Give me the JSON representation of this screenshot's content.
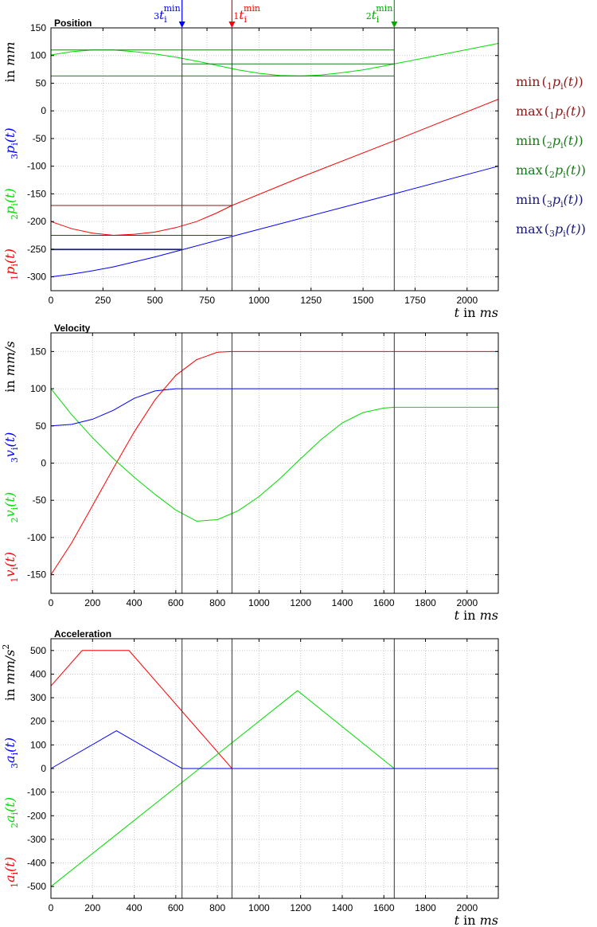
{
  "colors": {
    "p1": "#ff0000",
    "p2": "#00dd00",
    "p3": "#0000ff",
    "min1": "#8b1a1a",
    "max1": "#8b1a1a",
    "min2": "#1a7a1a",
    "max2": "#1a7a1a",
    "min3": "#1a1a7a",
    "max3": "#1a1a7a",
    "grid": "#c8c8c8",
    "axis": "#000000"
  },
  "markers": [
    {
      "label": "3t_i^min",
      "sub": "3",
      "sup": "min",
      "t": 630,
      "color": "#0000ff"
    },
    {
      "label": "1t_i^min",
      "sub": "1",
      "sup": "min",
      "t": 870,
      "color": "#ff0000"
    },
    {
      "label": "2t_i^min",
      "sub": "2",
      "sup": "min",
      "t": 1650,
      "color": "#00aa00"
    }
  ],
  "legend": [
    {
      "fn": "min",
      "sub": "1",
      "color": "#8b1a1a"
    },
    {
      "fn": "max",
      "sub": "1",
      "color": "#8b1a1a"
    },
    {
      "fn": "min",
      "sub": "2",
      "color": "#1a7a1a"
    },
    {
      "fn": "max",
      "sub": "2",
      "color": "#1a7a1a"
    },
    {
      "fn": "min",
      "sub": "3",
      "color": "#1a1a7a"
    },
    {
      "fn": "max",
      "sub": "3",
      "color": "#1a1a7a"
    }
  ],
  "chart_data": [
    {
      "type": "line",
      "title": "Position",
      "xlabel": "t in ms",
      "ylabel_unit": "in mm",
      "ylabel_series": [
        "1p_i(t)",
        "2p_i(t)",
        "3p_i(t)"
      ],
      "xlim": [
        0,
        2150
      ],
      "ylim": [
        -325,
        150
      ],
      "xticks": [
        0,
        250,
        500,
        750,
        1000,
        1250,
        1500,
        1750,
        2000
      ],
      "yticks": [
        150,
        100,
        50,
        0,
        -50,
        -100,
        -150,
        -200,
        -250,
        -300
      ],
      "grid": true,
      "series": [
        {
          "key": "p1",
          "x": [
            0,
            100,
            200,
            300,
            400,
            500,
            600,
            700,
            800,
            870,
            1200,
            1650,
            2150
          ],
          "y": [
            -200,
            -213,
            -221,
            -225,
            -223,
            -219,
            -211,
            -200,
            -184,
            -171,
            -120,
            -54,
            21
          ]
        },
        {
          "key": "p2",
          "x": [
            0,
            100,
            200,
            300,
            400,
            500,
            600,
            700,
            800,
            900,
            1000,
            1100,
            1200,
            1300,
            1400,
            1500,
            1600,
            1650,
            2150
          ],
          "y": [
            101,
            107,
            110,
            110,
            107,
            103,
            97,
            90,
            82,
            74,
            68,
            64,
            63,
            65,
            69,
            74,
            81,
            85,
            122
          ]
        },
        {
          "key": "p3",
          "x": [
            0,
            100,
            200,
            300,
            400,
            500,
            630,
            870,
            1650,
            2150
          ],
          "y": [
            -300,
            -295,
            -289,
            -282,
            -273,
            -264,
            -251,
            -227,
            -150,
            -100
          ]
        },
        {
          "key": "min1",
          "x": [
            0,
            870
          ],
          "y": [
            -225,
            -225
          ]
        },
        {
          "key": "max1",
          "x": [
            0,
            870
          ],
          "y": [
            -171,
            -171
          ]
        },
        {
          "key": "min2",
          "x": [
            0,
            1650
          ],
          "y": [
            63,
            63
          ]
        },
        {
          "key": "max2",
          "x": [
            0,
            1650
          ],
          "y": [
            110,
            110
          ]
        },
        {
          "key": "max2b",
          "x": [
            630,
            1650
          ],
          "y": [
            85,
            85
          ]
        },
        {
          "key": "min3",
          "x": [
            0,
            630
          ],
          "y": [
            -251,
            -251
          ]
        },
        {
          "key": "max3",
          "x": [
            0,
            630
          ],
          "y": [
            -250,
            -250
          ]
        }
      ]
    },
    {
      "type": "line",
      "title": "Velocity",
      "xlabel": "t in ms",
      "ylabel_unit": "in mm/s",
      "ylabel_series": [
        "1v_i(t)",
        "2v_i(t)",
        "3v_i(t)"
      ],
      "xlim": [
        0,
        2150
      ],
      "ylim": [
        -175,
        175
      ],
      "xticks": [
        0,
        200,
        400,
        600,
        800,
        1000,
        1200,
        1400,
        1600,
        1800,
        2000
      ],
      "yticks": [
        150,
        100,
        50,
        0,
        -50,
        -100,
        -150
      ],
      "grid": true,
      "series": [
        {
          "key": "p1",
          "x": [
            0,
            100,
            150,
            200,
            300,
            400,
            500,
            600,
            700,
            800,
            870,
            2150
          ],
          "y": [
            -150,
            -107,
            -82,
            -57,
            -7,
            42,
            85,
            118,
            139,
            149,
            150,
            150
          ]
        },
        {
          "key": "p2",
          "x": [
            0,
            100,
            200,
            300,
            400,
            500,
            600,
            700,
            800,
            900,
            1000,
            1100,
            1200,
            1300,
            1400,
            1500,
            1600,
            1650,
            2150
          ],
          "y": [
            100,
            65,
            34,
            6,
            -19,
            -42,
            -63,
            -78,
            -76,
            -64,
            -45,
            -21,
            6,
            32,
            54,
            68,
            74,
            75,
            75
          ]
        },
        {
          "key": "p3",
          "x": [
            0,
            100,
            200,
            300,
            400,
            500,
            600,
            630,
            2150
          ],
          "y": [
            50,
            52,
            59,
            71,
            87,
            97,
            100,
            100,
            100
          ]
        }
      ]
    },
    {
      "type": "line",
      "title": "Acceleration",
      "xlabel": "t in ms",
      "ylabel_unit": "in mm/s^2",
      "ylabel_series": [
        "1a_i(t)",
        "2a_i(t)",
        "3a_i(t)"
      ],
      "xlim": [
        0,
        2150
      ],
      "ylim": [
        -550,
        550
      ],
      "xticks": [
        0,
        200,
        400,
        600,
        800,
        1000,
        1200,
        1400,
        1600,
        1800,
        2000
      ],
      "yticks": [
        500,
        400,
        300,
        200,
        100,
        0,
        -100,
        -200,
        -300,
        -400,
        -500
      ],
      "grid": true,
      "series": [
        {
          "key": "p1",
          "x": [
            0,
            150,
            375,
            870,
            2150
          ],
          "y": [
            350,
            500,
            500,
            0,
            0
          ]
        },
        {
          "key": "p2",
          "x": [
            0,
            1185,
            1650,
            2150
          ],
          "y": [
            -500,
            330,
            0,
            0
          ]
        },
        {
          "key": "p3",
          "x": [
            0,
            315,
            630,
            2150
          ],
          "y": [
            0,
            160,
            0,
            0
          ]
        }
      ]
    }
  ]
}
